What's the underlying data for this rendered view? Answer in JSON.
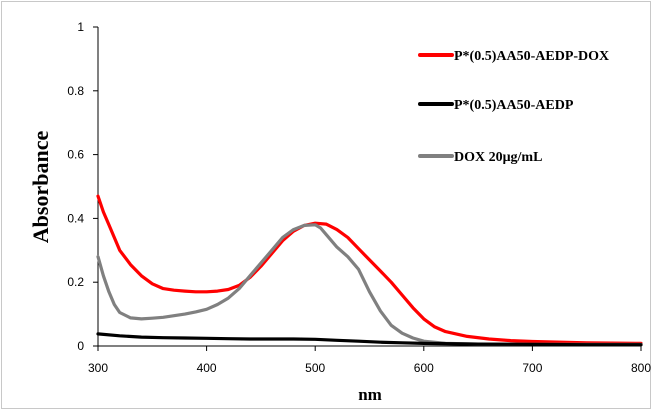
{
  "chart_data": {
    "type": "line",
    "title": "",
    "xlabel": "nm",
    "ylabel": "Absorbance",
    "xlim": [
      300,
      800
    ],
    "ylim": [
      0,
      1
    ],
    "x_ticks": [
      "300",
      "400",
      "500",
      "600",
      "700",
      "800"
    ],
    "y_ticks": [
      "0",
      "0.2",
      "0.4",
      "0.6",
      "0.8",
      "1"
    ],
    "grid": false,
    "legend_position": "top-right",
    "series": [
      {
        "name": "P*(0.5)AA50-AEDP-DOX",
        "color": "#ff0000",
        "points": [
          [
            300,
            0.47
          ],
          [
            305,
            0.42
          ],
          [
            310,
            0.38
          ],
          [
            315,
            0.34
          ],
          [
            320,
            0.3
          ],
          [
            330,
            0.255
          ],
          [
            340,
            0.22
          ],
          [
            350,
            0.195
          ],
          [
            360,
            0.18
          ],
          [
            370,
            0.175
          ],
          [
            380,
            0.172
          ],
          [
            390,
            0.17
          ],
          [
            400,
            0.17
          ],
          [
            410,
            0.172
          ],
          [
            420,
            0.177
          ],
          [
            430,
            0.19
          ],
          [
            440,
            0.215
          ],
          [
            450,
            0.25
          ],
          [
            460,
            0.29
          ],
          [
            470,
            0.33
          ],
          [
            480,
            0.36
          ],
          [
            490,
            0.378
          ],
          [
            500,
            0.385
          ],
          [
            510,
            0.382
          ],
          [
            520,
            0.365
          ],
          [
            530,
            0.34
          ],
          [
            540,
            0.305
          ],
          [
            550,
            0.27
          ],
          [
            560,
            0.235
          ],
          [
            570,
            0.2
          ],
          [
            580,
            0.16
          ],
          [
            590,
            0.12
          ],
          [
            600,
            0.085
          ],
          [
            610,
            0.06
          ],
          [
            620,
            0.045
          ],
          [
            640,
            0.03
          ],
          [
            660,
            0.022
          ],
          [
            680,
            0.017
          ],
          [
            700,
            0.014
          ],
          [
            750,
            0.01
          ],
          [
            800,
            0.008
          ]
        ]
      },
      {
        "name": "P*(0.5)AA50-AEDP",
        "color": "#000000",
        "points": [
          [
            300,
            0.038
          ],
          [
            320,
            0.032
          ],
          [
            340,
            0.028
          ],
          [
            360,
            0.026
          ],
          [
            380,
            0.025
          ],
          [
            400,
            0.024
          ],
          [
            420,
            0.023
          ],
          [
            440,
            0.022
          ],
          [
            460,
            0.022
          ],
          [
            480,
            0.022
          ],
          [
            500,
            0.021
          ],
          [
            520,
            0.018
          ],
          [
            540,
            0.015
          ],
          [
            560,
            0.012
          ],
          [
            580,
            0.01
          ],
          [
            600,
            0.008
          ],
          [
            650,
            0.006
          ],
          [
            700,
            0.005
          ],
          [
            750,
            0.004
          ],
          [
            800,
            0.004
          ]
        ]
      },
      {
        "name": "DOX 20μg/mL",
        "color": "#808080",
        "points": [
          [
            300,
            0.28
          ],
          [
            305,
            0.22
          ],
          [
            310,
            0.17
          ],
          [
            315,
            0.13
          ],
          [
            320,
            0.105
          ],
          [
            330,
            0.088
          ],
          [
            340,
            0.085
          ],
          [
            350,
            0.087
          ],
          [
            360,
            0.09
          ],
          [
            370,
            0.095
          ],
          [
            380,
            0.1
          ],
          [
            390,
            0.107
          ],
          [
            400,
            0.115
          ],
          [
            410,
            0.13
          ],
          [
            420,
            0.15
          ],
          [
            430,
            0.18
          ],
          [
            440,
            0.22
          ],
          [
            450,
            0.26
          ],
          [
            460,
            0.3
          ],
          [
            470,
            0.34
          ],
          [
            480,
            0.365
          ],
          [
            490,
            0.378
          ],
          [
            500,
            0.38
          ],
          [
            505,
            0.37
          ],
          [
            510,
            0.35
          ],
          [
            520,
            0.31
          ],
          [
            530,
            0.28
          ],
          [
            540,
            0.24
          ],
          [
            550,
            0.17
          ],
          [
            560,
            0.11
          ],
          [
            570,
            0.065
          ],
          [
            580,
            0.04
          ],
          [
            590,
            0.025
          ],
          [
            600,
            0.015
          ],
          [
            620,
            0.008
          ],
          [
            650,
            0.006
          ],
          [
            700,
            0.005
          ],
          [
            800,
            0.005
          ]
        ]
      }
    ]
  }
}
